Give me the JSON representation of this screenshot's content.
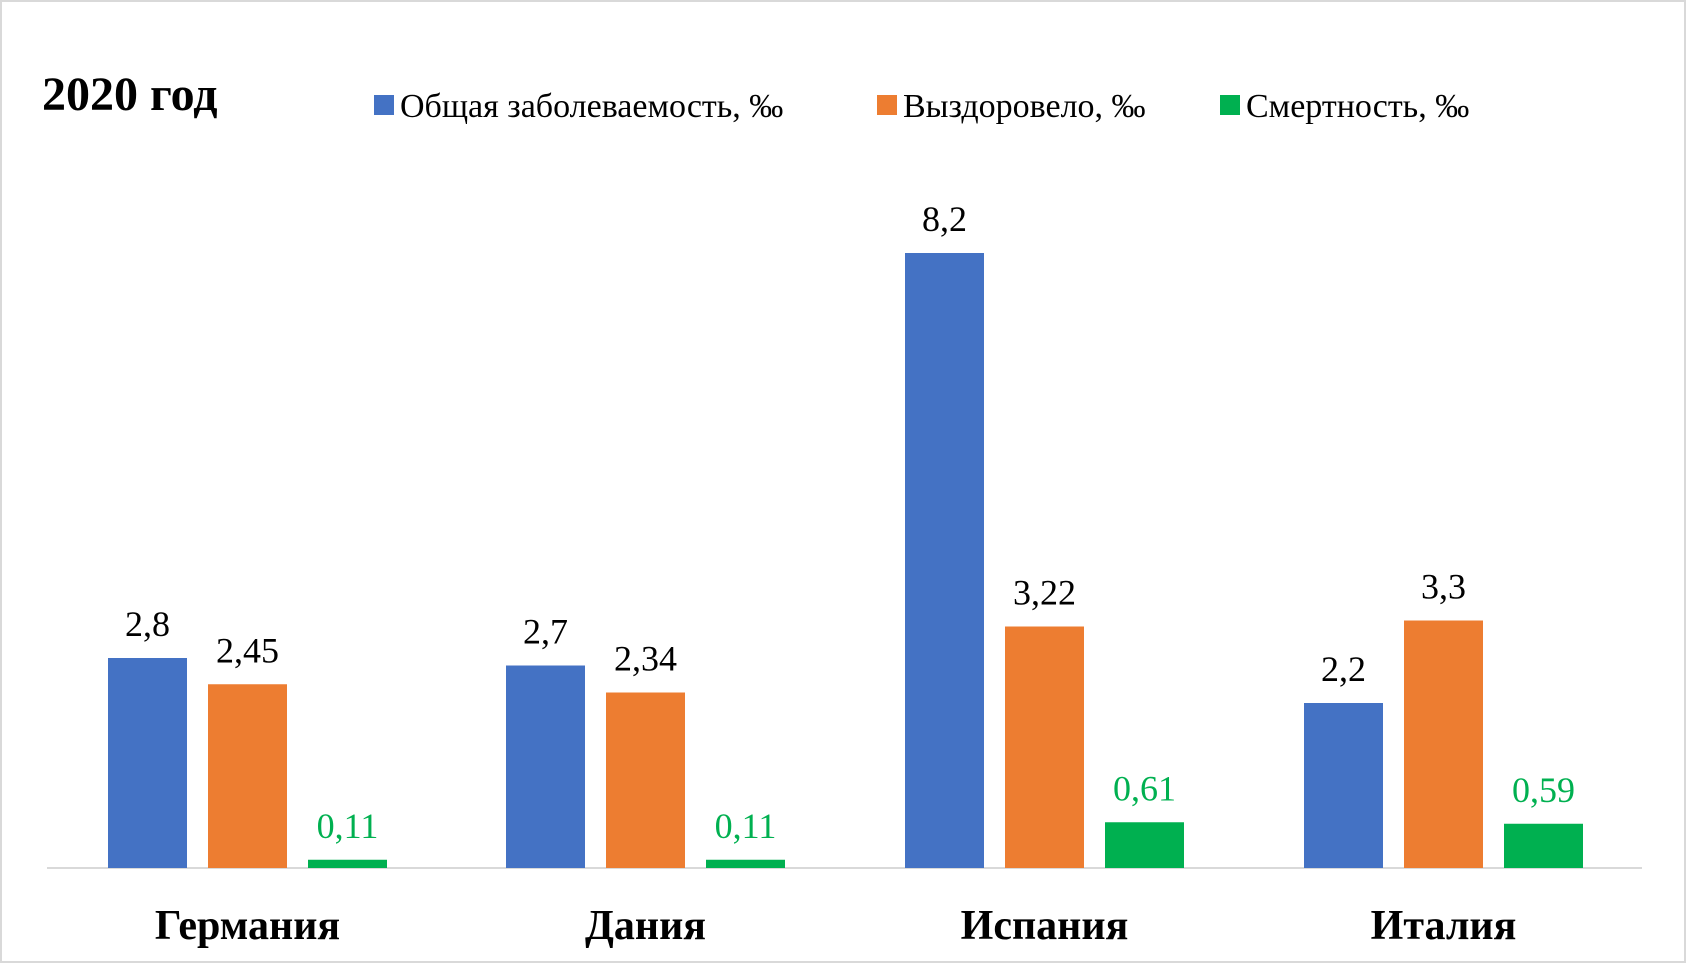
{
  "chart_data": {
    "type": "bar",
    "title": "2020 год",
    "categories": [
      "Германия",
      "Дания",
      "Испания",
      "Италия"
    ],
    "series": [
      {
        "name": "Общая заболеваемость, ‰",
        "color": "#4472C4",
        "label_color": "#000000",
        "values": [
          2.8,
          2.7,
          8.2,
          2.2
        ],
        "labels": [
          "2,8",
          "2,7",
          "8,2",
          "2,2"
        ]
      },
      {
        "name": "Выздоровело, ‰",
        "color": "#ED7D31",
        "label_color": "#000000",
        "values": [
          2.45,
          2.34,
          3.22,
          3.3
        ],
        "labels": [
          "2,45",
          "2,34",
          "3,22",
          "3,3"
        ]
      },
      {
        "name": "Смертность, ‰",
        "color": "#00B050",
        "label_color": "#00B050",
        "values": [
          0.11,
          0.11,
          0.61,
          0.59
        ],
        "labels": [
          "0,11",
          "0,11",
          "0,61",
          "0,59"
        ]
      }
    ],
    "ylim": [
      0,
      10
    ],
    "grid": false,
    "legend_position": "top"
  }
}
